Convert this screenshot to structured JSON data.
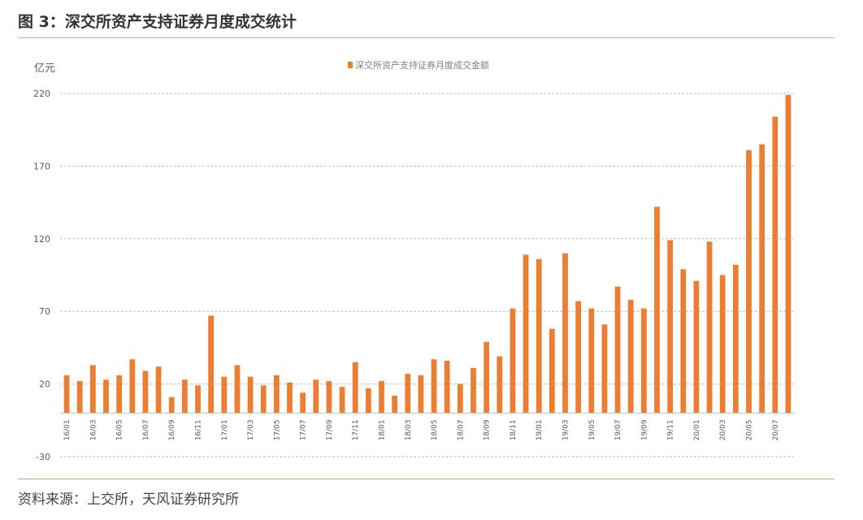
{
  "header": {
    "title": "图 3：深交所资产支持证券月度成交统计"
  },
  "footer": {
    "source": "资料来源：上交所，天风证券研究所"
  },
  "colors": {
    "bar": "#ed7d31",
    "accent_rule": "#e8a46e",
    "grid": "#bfbfbf",
    "text": "#595959"
  },
  "chart_data": {
    "type": "bar",
    "ylabel": "亿元",
    "legend": {
      "label": "深交所资产支持证券月度成交金额",
      "position": "top-center"
    },
    "ylim": [
      -30,
      220
    ],
    "yticks": [
      -30,
      20,
      70,
      120,
      170,
      220
    ],
    "grid": true,
    "categories": [
      "16/01",
      "16/02",
      "16/03",
      "16/04",
      "16/05",
      "16/06",
      "16/07",
      "16/08",
      "16/09",
      "16/10",
      "16/11",
      "16/12",
      "17/01",
      "17/02",
      "17/03",
      "17/04",
      "17/05",
      "17/06",
      "17/07",
      "17/08",
      "17/09",
      "17/10",
      "17/11",
      "17/12",
      "18/01",
      "18/02",
      "18/03",
      "18/04",
      "18/05",
      "18/06",
      "18/07",
      "18/08",
      "18/09",
      "18/10",
      "18/11",
      "18/12",
      "19/01",
      "19/02",
      "19/03",
      "19/04",
      "19/05",
      "19/06",
      "19/07",
      "19/08",
      "19/09",
      "19/10",
      "19/11",
      "19/12",
      "20/01",
      "20/02",
      "20/03",
      "20/04",
      "20/05",
      "20/06",
      "20/07",
      "20/08"
    ],
    "xtick_labels": [
      "16/01",
      "",
      "16/03",
      "",
      "16/05",
      "",
      "16/07",
      "",
      "16/09",
      "",
      "16/11",
      "",
      "17/01",
      "",
      "17/03",
      "",
      "17/05",
      "",
      "17/07",
      "",
      "17/09",
      "",
      "17/11",
      "",
      "18/01",
      "",
      "18/03",
      "",
      "18/05",
      "",
      "18/07",
      "",
      "18/09",
      "",
      "18/11",
      "",
      "19/01",
      "",
      "19/03",
      "",
      "19/05",
      "",
      "19/07",
      "",
      "19/09",
      "",
      "19/11",
      "",
      "20/01",
      "",
      "20/03",
      "",
      "20/05",
      "",
      "20/07",
      ""
    ],
    "values": [
      26,
      22,
      33,
      23,
      26,
      37,
      29,
      32,
      11,
      23,
      19,
      67,
      25,
      33,
      25,
      19,
      26,
      21,
      14,
      23,
      22,
      18,
      35,
      17,
      22,
      12,
      27,
      26,
      37,
      36,
      20,
      31,
      49,
      39,
      72,
      109,
      106,
      58,
      110,
      77,
      72,
      61,
      87,
      78,
      72,
      142,
      119,
      99,
      91,
      118,
      95,
      102,
      181,
      185,
      204,
      219
    ]
  }
}
